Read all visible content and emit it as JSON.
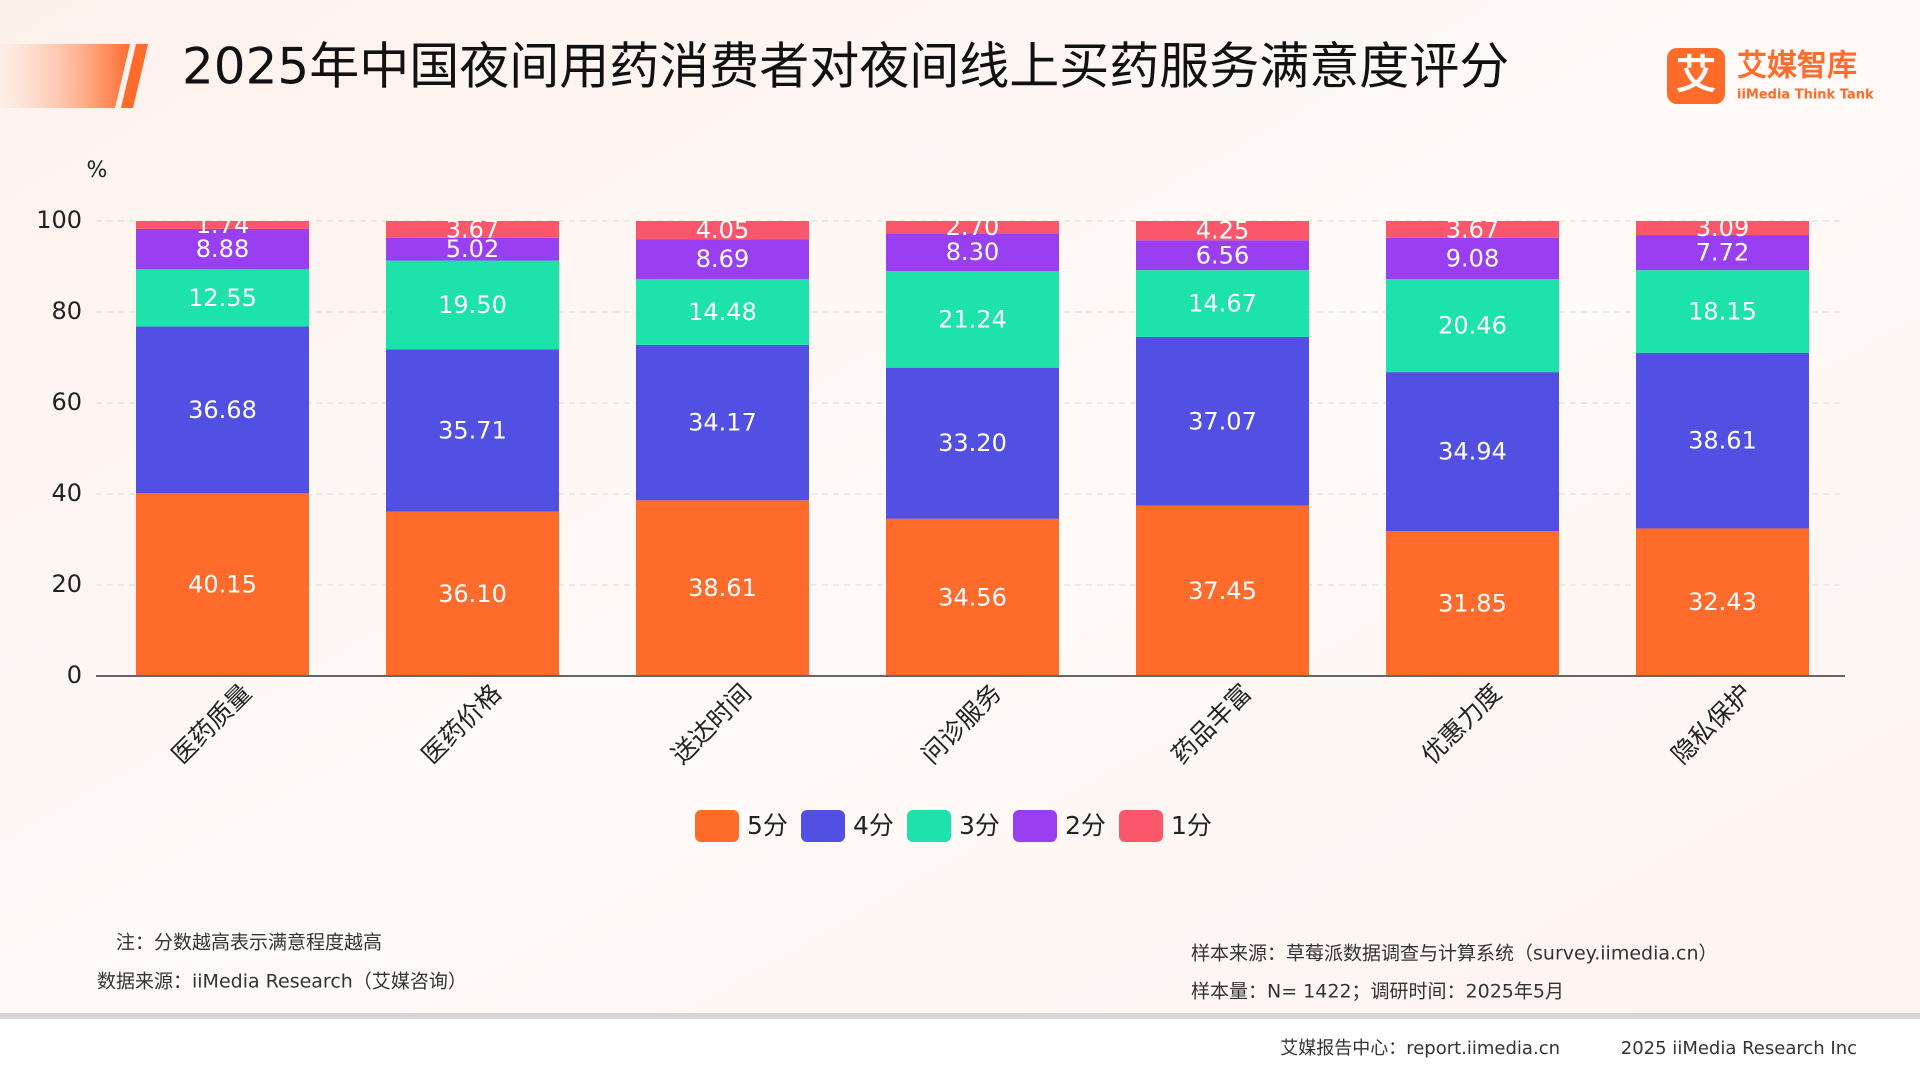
{
  "header": {
    "title": "2025年中国夜间用药消费者对夜间线上买药服务满意度评分",
    "logo_mark": "艾",
    "logo_name": "艾媒智库",
    "logo_sub": "iiMedia Think Tank"
  },
  "chart_data": {
    "type": "stacked_bar",
    "y_unit": "%",
    "categories": [
      "医药质量",
      "医药价格",
      "送达时间",
      "问诊服务",
      "药品丰富",
      "优惠力度",
      "隐私保护"
    ],
    "series": [
      {
        "name": "5分",
        "color": "#ff6b2b",
        "values": [
          40.15,
          36.1,
          38.61,
          34.56,
          37.45,
          31.85,
          32.43
        ],
        "value_labels": [
          "40.15",
          "36.10",
          "38.61",
          "34.56",
          "37.45",
          "31.85",
          "32.43"
        ]
      },
      {
        "name": "4分",
        "color": "#5150e2",
        "values": [
          36.68,
          35.71,
          34.17,
          33.2,
          37.07,
          34.94,
          38.61
        ],
        "value_labels": [
          "36.68",
          "35.71",
          "34.17",
          "33.20",
          "37.07",
          "34.94",
          "38.61"
        ]
      },
      {
        "name": "3分",
        "color": "#1de2a9",
        "values": [
          12.55,
          19.5,
          14.48,
          21.24,
          14.67,
          20.46,
          18.15
        ],
        "value_labels": [
          "12.55",
          "19.50",
          "14.48",
          "21.24",
          "14.67",
          "20.46",
          "18.15"
        ]
      },
      {
        "name": "2分",
        "color": "#9a3ef1",
        "values": [
          8.88,
          5.02,
          8.69,
          8.3,
          6.56,
          9.08,
          7.72
        ],
        "value_labels": [
          "8.88",
          "5.02",
          "8.69",
          "8.30",
          "6.56",
          "9.08",
          "7.72"
        ]
      },
      {
        "name": "1分",
        "color": "#fa576b",
        "values": [
          1.74,
          3.67,
          4.05,
          2.7,
          4.25,
          3.67,
          3.09
        ],
        "value_labels": [
          "1.74",
          "3.67",
          "4.05",
          "2.70",
          "4.25",
          "3.67",
          "3.09"
        ]
      }
    ],
    "ylim": [
      0,
      100
    ],
    "yticks": [
      0,
      20,
      40,
      60,
      80,
      100
    ],
    "grid": true,
    "legend": "bottom"
  },
  "notes": {
    "note": "注：分数越高表示满意程度越高",
    "source": "数据来源：iiMedia Research（艾媒咨询）",
    "sample_source": "样本来源：草莓派数据调查与计算系统（survey.iimedia.cn）",
    "sample_size": "样本量：N= 1422；调研时间：2025年5月"
  },
  "footer": {
    "center": "艾媒报告中心：report.iimedia.cn",
    "copyright": "2025 iiMedia Research Inc"
  }
}
